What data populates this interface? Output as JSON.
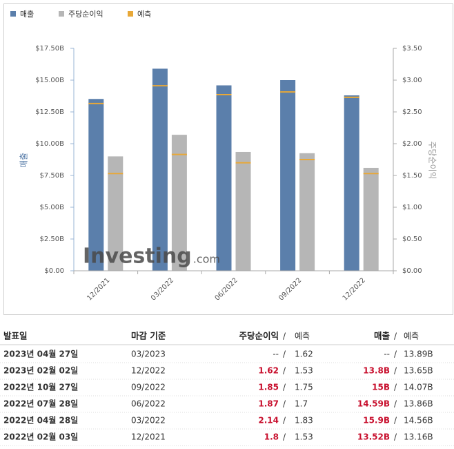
{
  "chart_data": {
    "type": "bar",
    "legend_position": "top-left",
    "categories": [
      "12/2021",
      "03/2022",
      "06/2022",
      "09/2022",
      "12/2022"
    ],
    "series": [
      {
        "name": "매출",
        "color": "#5b7fab",
        "values": [
          13.52,
          15.9,
          14.59,
          15,
          13.8
        ],
        "forecast": [
          13.16,
          14.56,
          13.86,
          14.07,
          13.65
        ]
      },
      {
        "name": "주당순이익",
        "color": "#b6b6b6",
        "axis": "y2",
        "values": [
          1.8,
          2.14,
          1.87,
          1.85,
          1.62
        ],
        "forecast": [
          1.53,
          1.83,
          1.7,
          1.75,
          1.53
        ]
      }
    ],
    "forecast_name": "예측",
    "forecast_color": "#e8a838",
    "ylabel": "매출",
    "y2label": "주당순이익",
    "ylim": [
      0,
      17.5
    ],
    "yticks": [
      {
        "value": 0,
        "label": "$0.00"
      },
      {
        "value": 2.5,
        "label": "$2.50B"
      },
      {
        "value": 5,
        "label": "$5.00B"
      },
      {
        "value": 7.5,
        "label": "$7.50B"
      },
      {
        "value": 10,
        "label": "$10.00B"
      },
      {
        "value": 12.5,
        "label": "$12.50B"
      },
      {
        "value": 15,
        "label": "$15.00B"
      },
      {
        "value": 17.5,
        "label": "$17.50B"
      }
    ],
    "y2lim": [
      0,
      3.5
    ],
    "y2ticks": [
      {
        "value": 0,
        "label": "$0.00"
      },
      {
        "value": 0.5,
        "label": "$0.50"
      },
      {
        "value": 1,
        "label": "$1.00"
      },
      {
        "value": 1.5,
        "label": "$1.50"
      },
      {
        "value": 2,
        "label": "$2.00"
      },
      {
        "value": 2.5,
        "label": "$2.50"
      },
      {
        "value": 3,
        "label": "$3.00"
      },
      {
        "value": 3.5,
        "label": "$3.50"
      }
    ],
    "watermark": "Investing",
    "watermark_suffix": ".com"
  },
  "table": {
    "header": [
      "발표일",
      "마감 기준",
      "주당순이익",
      "예측",
      "매출",
      "예측"
    ],
    "separator": "/",
    "rows": [
      [
        "2023년 04월 27일",
        "03/2023",
        "--",
        "1.62",
        "--",
        "13.89B"
      ],
      [
        "2023년 02월 02일",
        "12/2022",
        "1.62",
        "1.53",
        "13.8B",
        "13.65B"
      ],
      [
        "2022년 10월 27일",
        "09/2022",
        "1.85",
        "1.75",
        "15B",
        "14.07B"
      ],
      [
        "2022년 07월 28일",
        "06/2022",
        "1.87",
        "1.7",
        "14.59B",
        "13.86B"
      ],
      [
        "2022년 04월 28일",
        "03/2022",
        "2.14",
        "1.83",
        "15.9B",
        "14.56B"
      ],
      [
        "2022년 02월 03일",
        "12/2021",
        "1.8",
        "1.53",
        "13.52B",
        "13.16B"
      ]
    ]
  }
}
